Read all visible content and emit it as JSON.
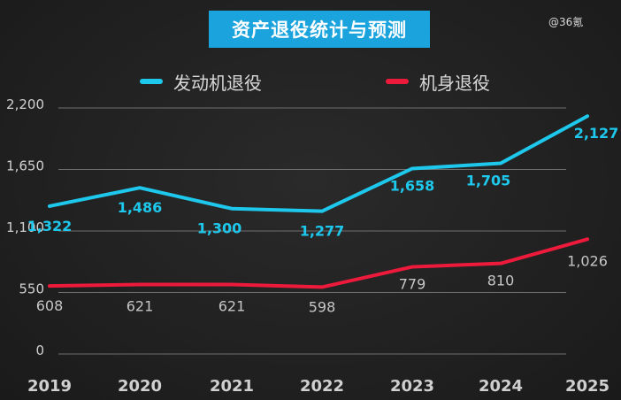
{
  "title": "资产退役统计与预测",
  "watermark": "@36氪",
  "colors": {
    "engine": "#1ec8ec",
    "airframe": "#ee1a3c",
    "grid": "#6f6f6f",
    "tick": "#d0d0d0",
    "title_bg": "#1aa3dc"
  },
  "chart_data": {
    "type": "line",
    "title": "资产退役统计与预测",
    "categories": [
      "2019",
      "2020",
      "2021",
      "2022",
      "2023",
      "2024",
      "2025"
    ],
    "ylim": [
      0,
      2200
    ],
    "yticks": [
      0,
      550,
      1100,
      1650,
      2200
    ],
    "ytick_labels": [
      "0",
      "550",
      "1,100",
      "1,650",
      "2,200"
    ],
    "grid": true,
    "legend_position": "top",
    "series": [
      {
        "name": "发动机退役",
        "values": [
          1322,
          1486,
          1300,
          1277,
          1658,
          1705,
          2127
        ],
        "labels": [
          "1,322",
          "1,486",
          "1,300",
          "1,277",
          "1,658",
          "1,705",
          "2,127"
        ]
      },
      {
        "name": "机身退役",
        "values": [
          608,
          621,
          621,
          598,
          779,
          810,
          1026
        ],
        "labels": [
          "608",
          "621",
          "621",
          "598",
          "779",
          "810",
          "1,026"
        ]
      }
    ]
  }
}
